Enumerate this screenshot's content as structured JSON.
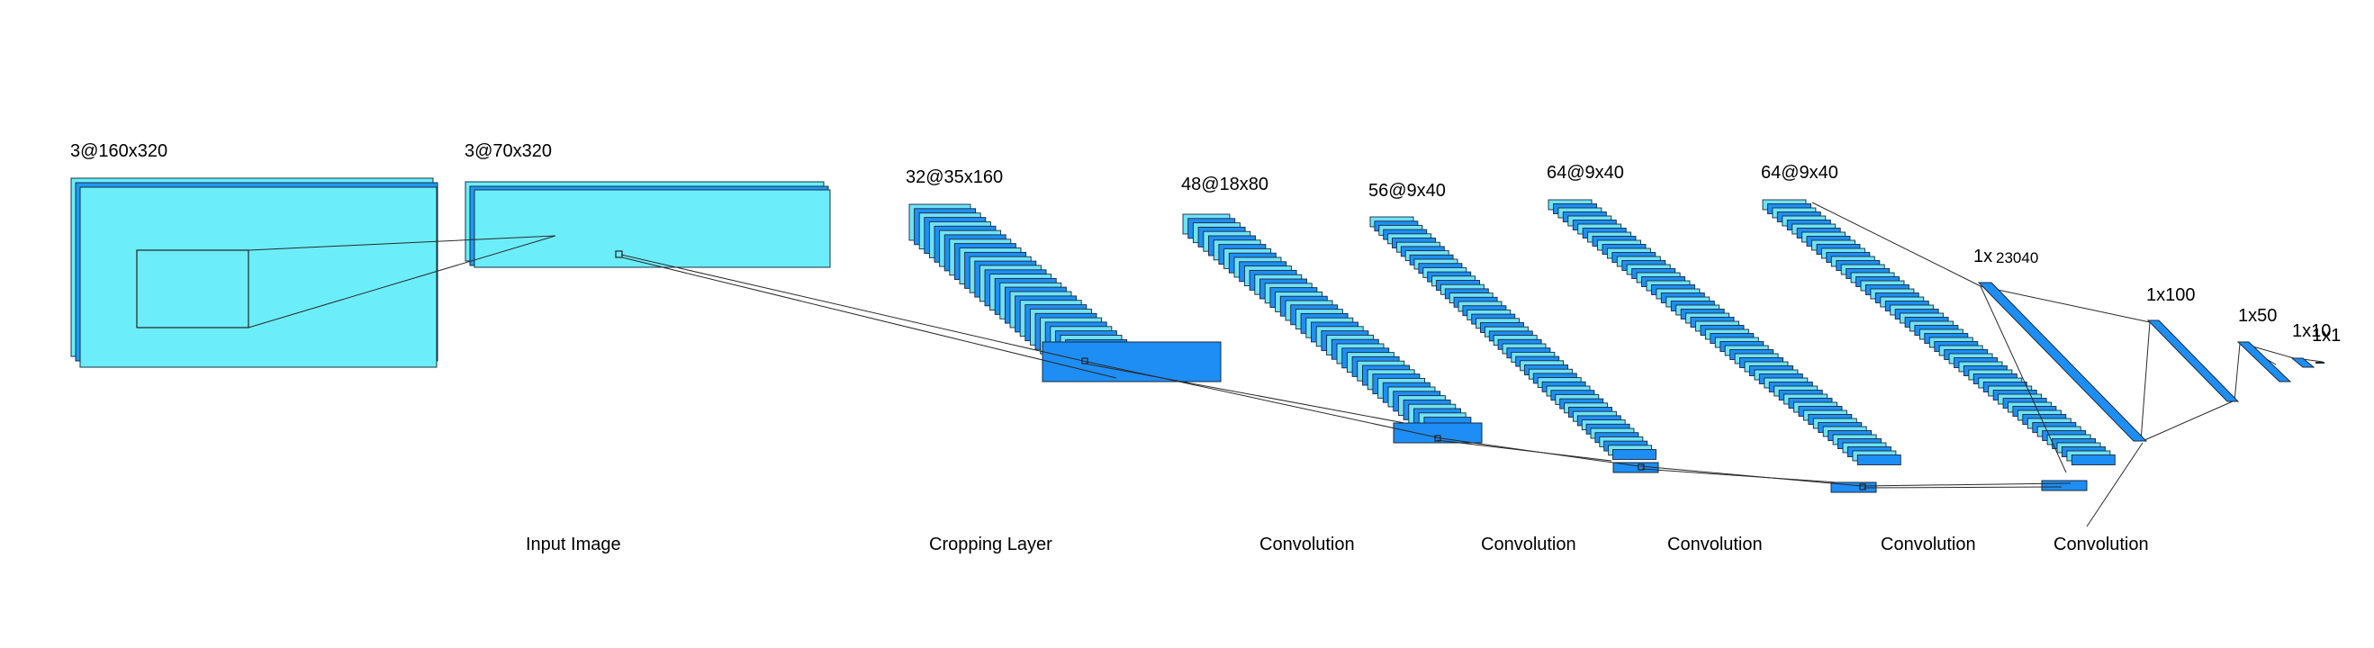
{
  "layers": {
    "input_full": {
      "label": "3@160x320"
    },
    "input_crop": {
      "label": "3@70x320"
    },
    "conv1": {
      "label": "32@35x160"
    },
    "conv2": {
      "label": "48@18x80"
    },
    "conv3": {
      "label": "56@9x40"
    },
    "conv4": {
      "label": "64@9x40"
    },
    "conv5": {
      "label": "64@9x40"
    },
    "flat": {
      "label_prefix": "1x",
      "label_value": "23040"
    },
    "fc1": {
      "label": "1x100"
    },
    "fc2": {
      "label": "1x50"
    },
    "fc3": {
      "label": "1x10"
    },
    "out": {
      "label": "1x1"
    }
  },
  "captions": [
    "Input Image",
    "Cropping Layer",
    "Convolution",
    "Convolution",
    "Convolution",
    "Convolution",
    "Convolution"
  ],
  "colors": {
    "input_fill": "#6beefa",
    "input_back": "#1f9af5",
    "feature_face": "#6fe2f6",
    "feature_dark": "#1e8ef5",
    "outline": "#1a2a3a"
  }
}
